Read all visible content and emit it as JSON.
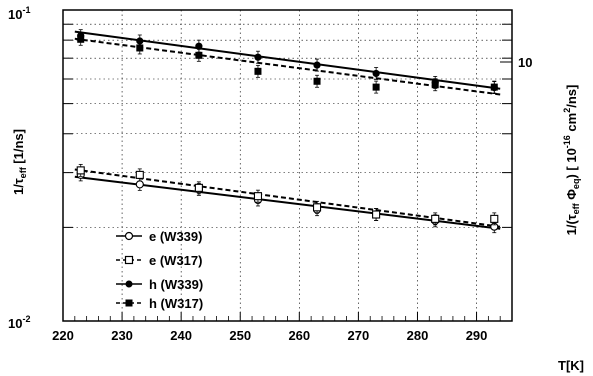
{
  "chart_data": {
    "type": "scatter",
    "xlabel": "T[K]",
    "ylabel_left": {
      "pre": "1/τ",
      "sub": "eff",
      "post": " [1/ns]"
    },
    "ylabel_right": {
      "p1": "1/(τ",
      "s1": "eff",
      "p2": " Φ",
      "s2": "eq",
      "p3": ") [ 10",
      "sup1": "-16",
      "p4": " cm",
      "sup2": "2",
      "p5": "/ns]"
    },
    "xlim": [
      220,
      296
    ],
    "ylim": [
      0.01,
      0.1
    ],
    "yscale": "log",
    "grid": true,
    "legend_position": "bottom-left",
    "x_ticks": [
      220,
      230,
      240,
      250,
      260,
      270,
      280,
      290
    ],
    "x_tick_labels": [
      "220",
      "230",
      "240",
      "250",
      "260",
      "270",
      "280",
      "290"
    ],
    "y_tick_labels": {
      "top": {
        "base": "10",
        "exp": "-1"
      },
      "bottom": {
        "base": "10",
        "exp": "-2"
      }
    },
    "right_axis": {
      "tick_label": "10"
    },
    "series": [
      {
        "name": "e (W339)",
        "marker": "open-circle",
        "line": "solid",
        "x": [
          223,
          233,
          243,
          253,
          263,
          273,
          283,
          293
        ],
        "y": [
          0.0295,
          0.0275,
          0.0265,
          0.0245,
          0.0228,
          0.022,
          0.021,
          0.0201
        ],
        "fit": [
          [
            222,
            0.0291
          ],
          [
            294,
            0.0198
          ]
        ]
      },
      {
        "name": "e (W317)",
        "marker": "open-square",
        "line": "dashed",
        "x": [
          223,
          233,
          243,
          253,
          263,
          273,
          283,
          293
        ],
        "y": [
          0.0305,
          0.0295,
          0.0268,
          0.0252,
          0.0232,
          0.022,
          0.0213,
          0.0213
        ],
        "fit": [
          [
            222,
            0.0307
          ],
          [
            294,
            0.0201
          ]
        ]
      },
      {
        "name": "h (W339)",
        "marker": "filled-circle",
        "line": "solid",
        "x": [
          223,
          233,
          243,
          253,
          263,
          273,
          283,
          293
        ],
        "y": [
          0.0827,
          0.0795,
          0.0765,
          0.0705,
          0.0665,
          0.0625,
          0.0585,
          0.0563
        ],
        "fit": [
          [
            222,
            0.0852
          ],
          [
            294,
            0.0558
          ]
        ]
      },
      {
        "name": "h (W317)",
        "marker": "filled-square",
        "line": "dashed",
        "x": [
          223,
          233,
          243,
          253,
          263,
          273,
          283,
          293
        ],
        "y": [
          0.0805,
          0.0755,
          0.0715,
          0.0635,
          0.059,
          0.0565,
          0.0575,
          0.0565
        ],
        "fit": [
          [
            222,
            0.0808
          ],
          [
            294,
            0.0535
          ]
        ]
      }
    ]
  }
}
